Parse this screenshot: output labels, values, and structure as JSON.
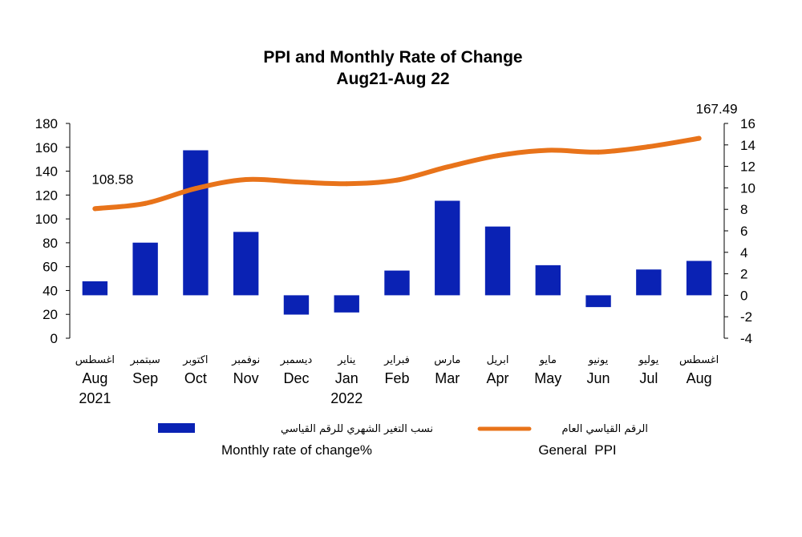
{
  "chart_data": {
    "type": "bar+line",
    "title_line1": "PPI and Monthly Rate of Change",
    "title_line2": "Aug21-Aug 22",
    "categories": [
      {
        "ar": "اغسطس",
        "en": "Aug",
        "en2": "2021"
      },
      {
        "ar": "سبتمبر",
        "en": "Sep",
        "en2": ""
      },
      {
        "ar": "اكتوبر",
        "en": "Oct",
        "en2": ""
      },
      {
        "ar": "نوفمبر",
        "en": "Nov",
        "en2": ""
      },
      {
        "ar": "ديسمبر",
        "en": "Dec",
        "en2": ""
      },
      {
        "ar": "يناير",
        "en": "Jan",
        "en2": "2022"
      },
      {
        "ar": "فبراير",
        "en": "Feb",
        "en2": ""
      },
      {
        "ar": "مارس",
        "en": "Mar",
        "en2": ""
      },
      {
        "ar": "ابريل",
        "en": "Apr",
        "en2": ""
      },
      {
        "ar": "مايو",
        "en": "May",
        "en2": ""
      },
      {
        "ar": "يونيو",
        "en": "Jun",
        "en2": ""
      },
      {
        "ar": "يوليو",
        "en": "Jul",
        "en2": ""
      },
      {
        "ar": "اغسطس",
        "en": "Aug",
        "en2": ""
      }
    ],
    "series": [
      {
        "name": "Monthly rate of change%",
        "name_ar": "نسب التغير الشهري للرقم القياسي",
        "kind": "bar",
        "axis": "right",
        "color": "#0a22b4",
        "values": [
          1.3,
          4.9,
          13.5,
          5.9,
          -1.8,
          -1.6,
          2.3,
          8.8,
          6.4,
          2.8,
          -1.1,
          2.4,
          3.2
        ]
      },
      {
        "name": "General  PPI",
        "name_ar": "الرقم القياسي العام",
        "kind": "line",
        "axis": "left",
        "color": "#e8731a",
        "values": [
          108.58,
          113.0,
          125.5,
          133.0,
          131.0,
          129.5,
          132.5,
          143.5,
          153.0,
          157.5,
          156.0,
          160.5,
          167.49
        ]
      }
    ],
    "data_labels": [
      {
        "series": 1,
        "index": 0,
        "text": "108.58"
      },
      {
        "series": 1,
        "index": 12,
        "text": "167.49"
      }
    ],
    "left_axis": {
      "min": 0,
      "max": 180,
      "step": 20
    },
    "right_axis": {
      "min": -4,
      "max": 16,
      "step": 2
    },
    "grid": false,
    "legend_position": "bottom"
  }
}
